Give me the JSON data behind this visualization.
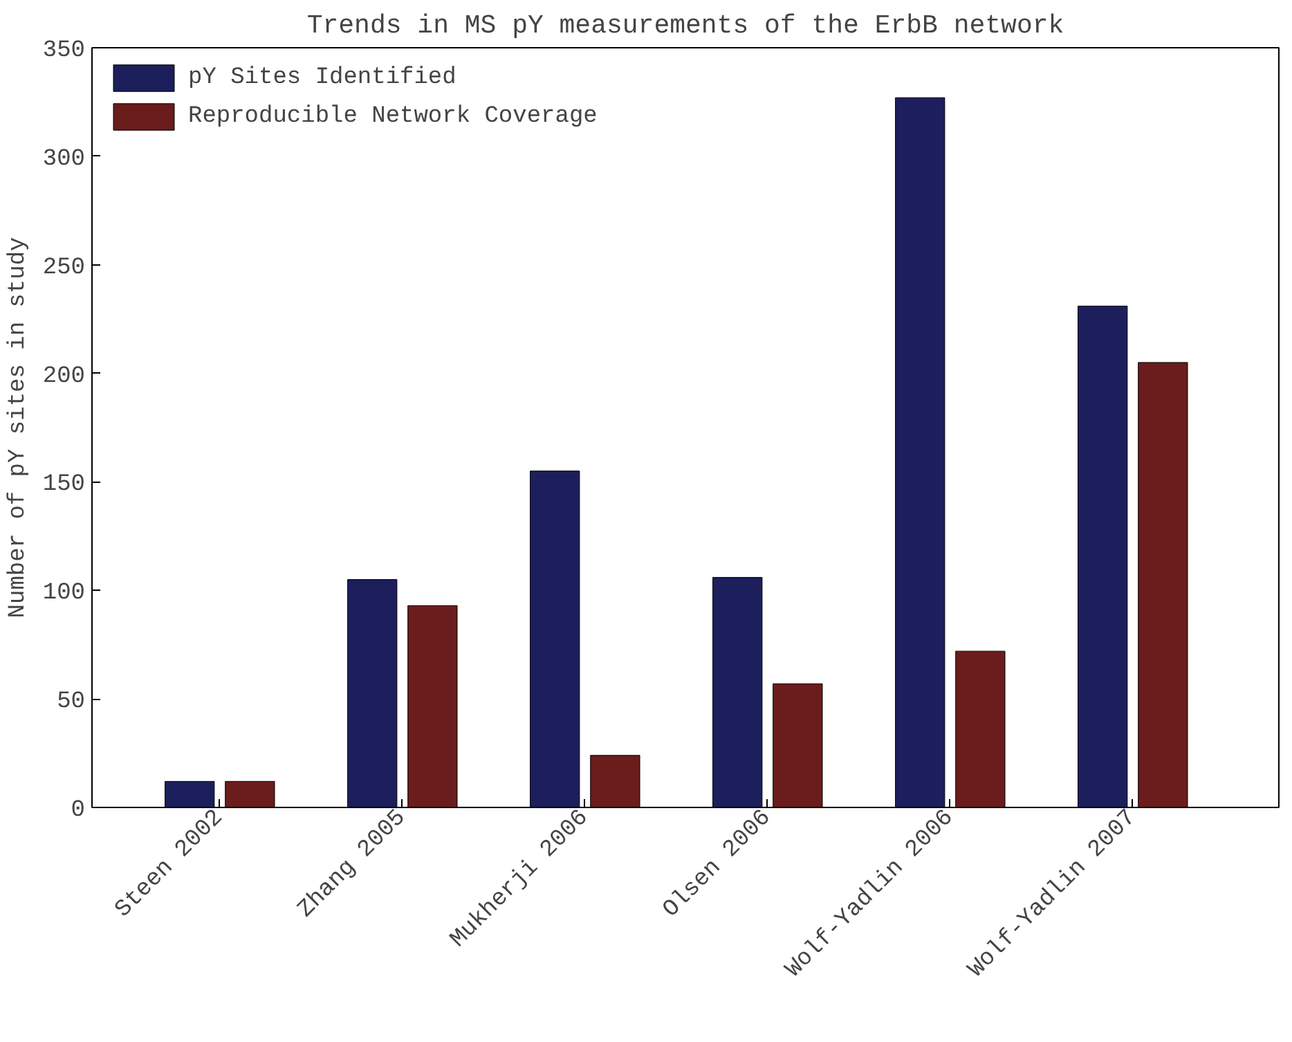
{
  "chart_data": {
    "type": "bar",
    "title": "Trends in MS pY measurements of the ErbB network",
    "ylabel": "Number of pY sites in study",
    "categories": [
      "Steen 2002",
      "Zhang 2005",
      "Mukherji 2006",
      "Olsen 2006",
      "Wolf-Yadlin 2006",
      "Wolf-Yadlin 2007"
    ],
    "series": [
      {
        "name": "pY Sites Identified",
        "color": "#1c1f5c",
        "values": [
          12,
          105,
          155,
          106,
          327,
          231
        ]
      },
      {
        "name": "Reproducible Network Coverage",
        "color": "#6b1c1c",
        "values": [
          12,
          93,
          24,
          57,
          72,
          205
        ]
      }
    ],
    "ylim": [
      0,
      350
    ],
    "yticks": [
      0,
      50,
      100,
      150,
      200,
      250,
      300,
      350
    ],
    "grid": false,
    "legend": "top left"
  }
}
